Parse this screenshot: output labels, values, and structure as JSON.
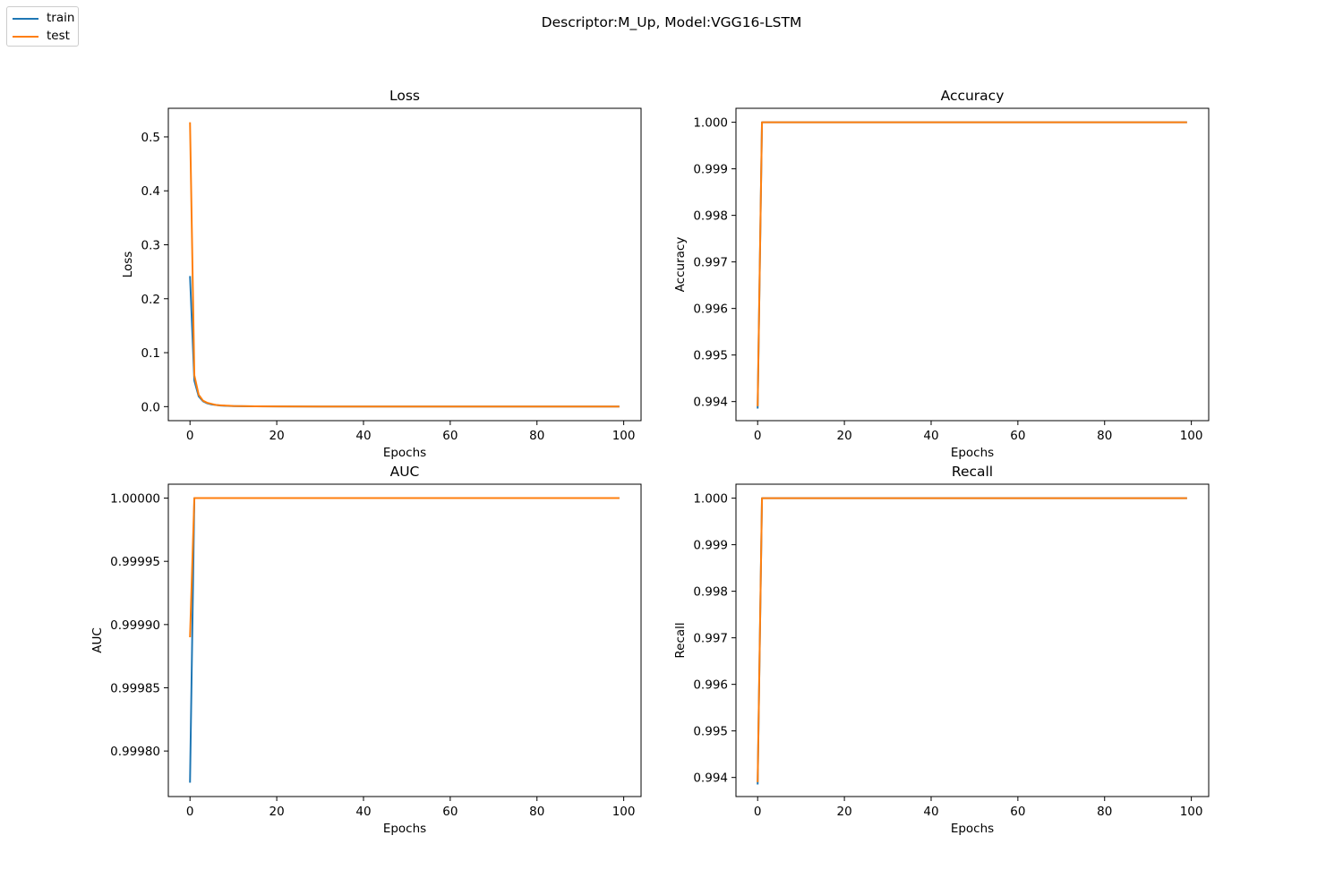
{
  "suptitle": "Descriptor:M_Up, Model:VGG16-LSTM",
  "legend": [
    {
      "label": "train",
      "color": "#1f77b4"
    },
    {
      "label": "test",
      "color": "#ff7f0e"
    }
  ],
  "chart_data": [
    {
      "type": "line",
      "title": "Loss",
      "xlabel": "Epochs",
      "ylabel": "Loss",
      "xlim": [
        -5,
        104
      ],
      "ylim": [
        -0.026,
        0.553
      ],
      "xticks": [
        0,
        20,
        40,
        60,
        80,
        100
      ],
      "yticks": [
        0.0,
        0.1,
        0.2,
        0.3,
        0.4,
        0.5
      ],
      "ytick_labels": [
        "0.0",
        "0.1",
        "0.2",
        "0.3",
        "0.4",
        "0.5"
      ],
      "series": [
        {
          "name": "train",
          "color": "#1f77b4",
          "x": [
            0,
            1,
            2,
            3,
            4,
            5,
            6,
            7,
            8,
            10,
            12,
            15,
            20,
            30,
            50,
            70,
            99
          ],
          "y": [
            0.242,
            0.048,
            0.019,
            0.01,
            0.006,
            0.004,
            0.003,
            0.002,
            0.0015,
            0.001,
            0.0008,
            0.0005,
            0.0003,
            0.0002,
            0.0001,
            5e-05,
            3e-05
          ]
        },
        {
          "name": "test",
          "color": "#ff7f0e",
          "x": [
            0,
            1,
            2,
            3,
            4,
            5,
            6,
            7,
            8,
            10,
            12,
            15,
            20,
            30,
            50,
            70,
            99
          ],
          "y": [
            0.527,
            0.058,
            0.022,
            0.011,
            0.007,
            0.005,
            0.003,
            0.0025,
            0.002,
            0.0012,
            0.0009,
            0.0006,
            0.0004,
            0.0002,
            0.0001,
            5e-05,
            3e-05
          ]
        }
      ]
    },
    {
      "type": "line",
      "title": "Accuracy",
      "xlabel": "Epochs",
      "ylabel": "Accuracy",
      "xlim": [
        -5,
        104
      ],
      "ylim": [
        0.99359,
        1.0003
      ],
      "xticks": [
        0,
        20,
        40,
        60,
        80,
        100
      ],
      "yticks": [
        0.994,
        0.995,
        0.996,
        0.997,
        0.998,
        0.999,
        1.0
      ],
      "ytick_labels": [
        "0.994",
        "0.995",
        "0.996",
        "0.997",
        "0.998",
        "0.999",
        "1.000"
      ],
      "series": [
        {
          "name": "train",
          "color": "#1f77b4",
          "x": [
            0,
            1,
            99
          ],
          "y": [
            0.99385,
            1.0,
            1.0
          ]
        },
        {
          "name": "test",
          "color": "#ff7f0e",
          "x": [
            0,
            1,
            99
          ],
          "y": [
            0.9939,
            1.0,
            1.0
          ]
        }
      ]
    },
    {
      "type": "line",
      "title": "AUC",
      "xlabel": "Epochs",
      "ylabel": "AUC",
      "xlim": [
        -5,
        104
      ],
      "ylim": [
        0.999764,
        1.000011
      ],
      "xticks": [
        0,
        20,
        40,
        60,
        80,
        100
      ],
      "yticks": [
        0.9998,
        0.99985,
        0.9999,
        0.99995,
        1.0
      ],
      "ytick_labels": [
        "0.99980",
        "0.99985",
        "0.99990",
        "0.99995",
        "1.00000"
      ],
      "series": [
        {
          "name": "train",
          "color": "#1f77b4",
          "x": [
            0,
            1,
            99
          ],
          "y": [
            0.999775,
            1.0,
            1.0
          ]
        },
        {
          "name": "test",
          "color": "#ff7f0e",
          "x": [
            0,
            1,
            99
          ],
          "y": [
            0.99989,
            1.0,
            1.0
          ]
        }
      ]
    },
    {
      "type": "line",
      "title": "Recall",
      "xlabel": "Epochs",
      "ylabel": "Recall",
      "xlim": [
        -5,
        104
      ],
      "ylim": [
        0.99359,
        1.0003
      ],
      "xticks": [
        0,
        20,
        40,
        60,
        80,
        100
      ],
      "yticks": [
        0.994,
        0.995,
        0.996,
        0.997,
        0.998,
        0.999,
        1.0
      ],
      "ytick_labels": [
        "0.994",
        "0.995",
        "0.996",
        "0.997",
        "0.998",
        "0.999",
        "1.000"
      ],
      "series": [
        {
          "name": "train",
          "color": "#1f77b4",
          "x": [
            0,
            1,
            99
          ],
          "y": [
            0.99385,
            1.0,
            1.0
          ]
        },
        {
          "name": "test",
          "color": "#ff7f0e",
          "x": [
            0,
            1,
            99
          ],
          "y": [
            0.9939,
            1.0,
            1.0
          ]
        }
      ]
    }
  ]
}
